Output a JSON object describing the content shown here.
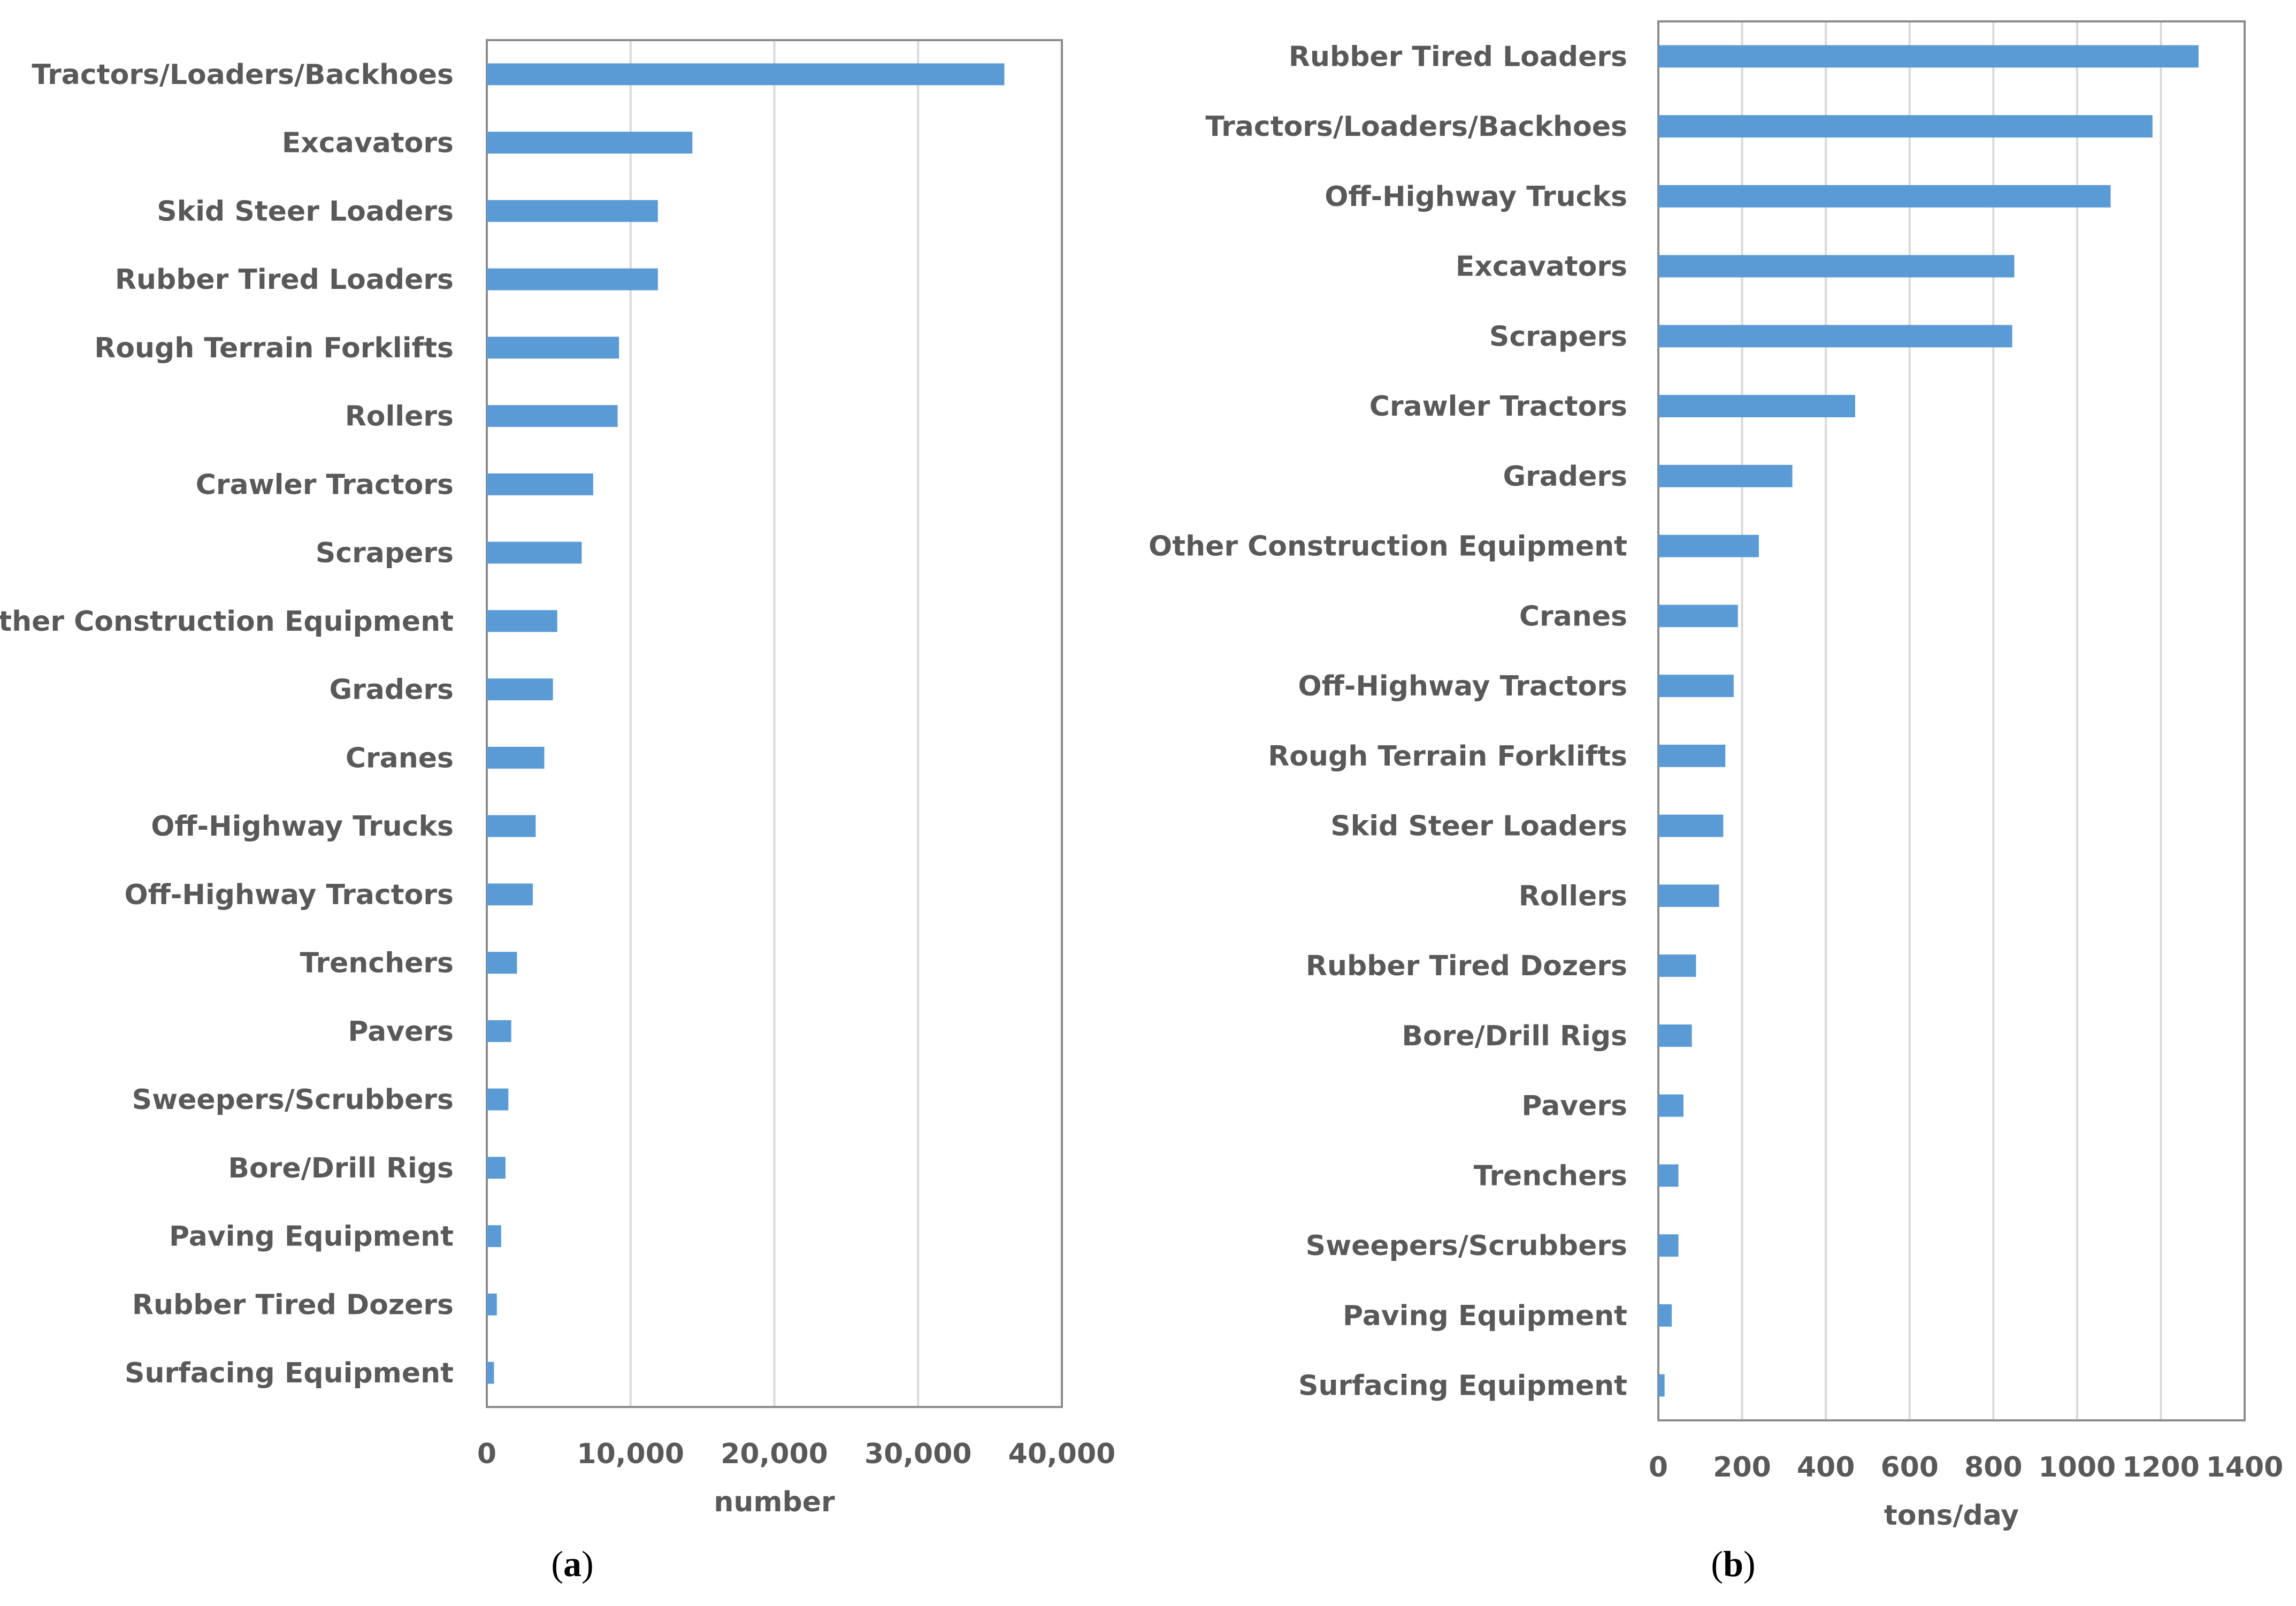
{
  "colors": {
    "bar": "#5b9bd5",
    "grid": "#d9d9d9",
    "frame": "#8c8c8c",
    "text": "#595959"
  },
  "chart_data": [
    {
      "type": "bar",
      "orientation": "horizontal",
      "panel": "a",
      "xlabel": "number",
      "xlim": [
        0,
        40000
      ],
      "xticks": [
        0,
        10000,
        20000,
        30000,
        40000
      ],
      "xtick_labels": [
        "0",
        "10,000",
        "20,000",
        "30,000",
        "40,000"
      ],
      "grid": true,
      "categories": [
        "Tractors/Loaders/Backhoes",
        "Excavators",
        "Skid Steer Loaders",
        "Rubber Tired Loaders",
        "Rough Terrain Forklifts",
        "Rollers",
        "Crawler Tractors",
        "Scrapers",
        "Other Construction Equipment",
        "Graders",
        "Cranes",
        "Off-Highway Trucks",
        "Off-Highway Tractors",
        "Trenchers",
        "Pavers",
        "Sweepers/Scrubbers",
        "Bore/Drill Rigs",
        "Paving Equipment",
        "Rubber Tired Dozers",
        "Surfacing Equipment"
      ],
      "values": [
        36000,
        14300,
        11900,
        11900,
        9200,
        9100,
        7400,
        6600,
        4900,
        4600,
        4000,
        3400,
        3200,
        2100,
        1700,
        1500,
        1300,
        1000,
        700,
        500
      ]
    },
    {
      "type": "bar",
      "orientation": "horizontal",
      "panel": "b",
      "xlabel": "tons/day",
      "xlim": [
        0,
        1400
      ],
      "xticks": [
        0,
        200,
        400,
        600,
        800,
        1000,
        1200,
        1400
      ],
      "xtick_labels": [
        "0",
        "200",
        "400",
        "600",
        "800",
        "1000",
        "1200",
        "1400"
      ],
      "grid": true,
      "categories": [
        "Rubber Tired Loaders",
        "Tractors/Loaders/Backhoes",
        "Off-Highway Trucks",
        "Excavators",
        "Scrapers",
        "Crawler Tractors",
        "Graders",
        "Other Construction Equipment",
        "Cranes",
        "Off-Highway Tractors",
        "Rough Terrain Forklifts",
        "Skid Steer Loaders",
        "Rollers",
        "Rubber Tired Dozers",
        "Bore/Drill Rigs",
        "Pavers",
        "Trenchers",
        "Sweepers/Scrubbers",
        "Paving Equipment",
        "Surfacing Equipment"
      ],
      "values": [
        1290,
        1180,
        1080,
        850,
        845,
        470,
        320,
        240,
        190,
        180,
        160,
        155,
        145,
        90,
        80,
        60,
        48,
        48,
        32,
        15
      ]
    }
  ]
}
